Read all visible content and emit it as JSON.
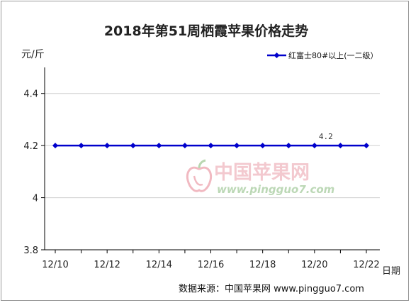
{
  "chart_data": {
    "type": "line",
    "title": "2018年第51周栖霞苹果价格走势",
    "ylabel": "元/斤",
    "xlabel": "日期",
    "ylim": [
      3.8,
      4.5
    ],
    "y_ticks": [
      "3.8",
      "4",
      "4.2",
      "4.4"
    ],
    "y_tick_values": [
      3.8,
      4.0,
      4.2,
      4.4
    ],
    "categories": [
      "12/10",
      "",
      "12/12",
      "",
      "12/14",
      "",
      "12/16",
      "",
      "12/18",
      "",
      "12/20",
      "",
      "12/22"
    ],
    "x_tick_labels": [
      "12/10",
      "12/12",
      "12/14",
      "12/16",
      "12/18",
      "12/20",
      "12/22"
    ],
    "series": [
      {
        "name": "红富士80#以上(一二级）",
        "color": "#0000cc",
        "values": [
          4.2,
          4.2,
          4.2,
          4.2,
          4.2,
          4.2,
          4.2,
          4.2,
          4.2,
          4.2,
          4.2,
          4.2,
          4.2
        ]
      }
    ],
    "data_labels": [
      {
        "index": 10,
        "text": "4.2"
      }
    ],
    "grid": "horizontal",
    "legend_position": "top-right"
  },
  "watermark": {
    "name": "中国苹果网",
    "url": "www.pingguo7.com",
    "logo": "apple-logo"
  },
  "source": "数据来源：中国苹果网  www.pingguo7.com"
}
